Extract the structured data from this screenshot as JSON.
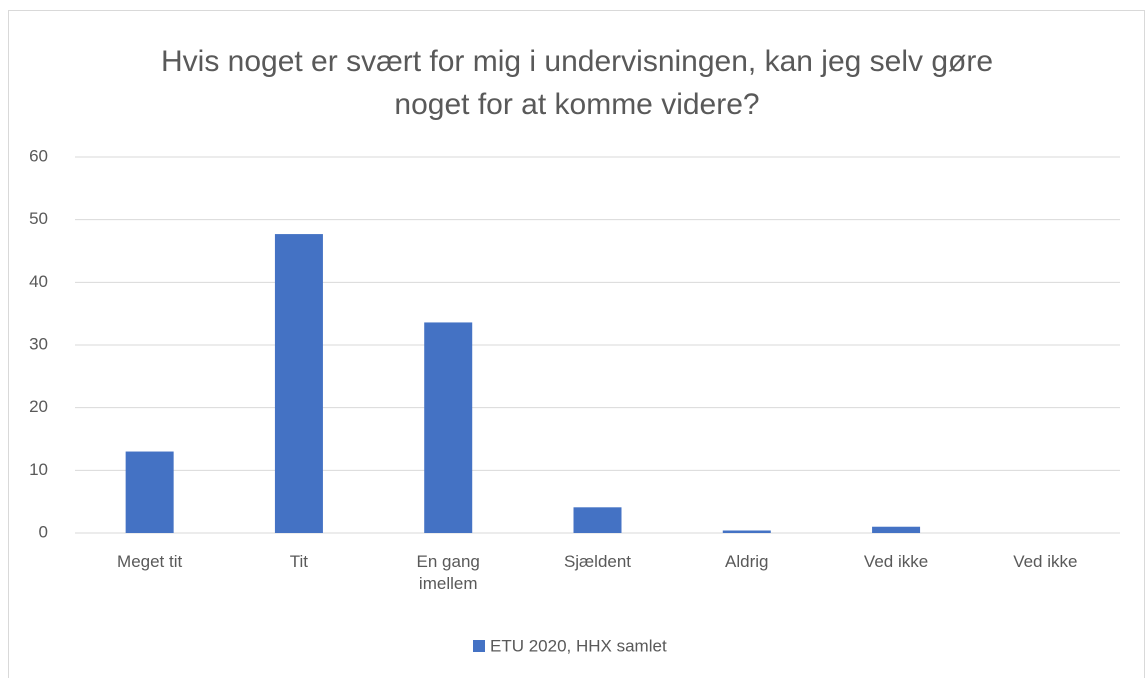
{
  "chart_data": {
    "type": "bar",
    "title": "Hvis noget er svært for mig i undervisningen, kan jeg selv gøre noget for at komme videre?",
    "categories": [
      "Meget tit",
      "Tit",
      "En gang imellem",
      "Sjældent",
      "Aldrig",
      "Ved ikke",
      "Ved ikke"
    ],
    "series": [
      {
        "name": "ETU 2020, HHX samlet",
        "color": "#4472c4",
        "values": [
          13,
          47.7,
          33.6,
          4.1,
          0.4,
          1.0,
          0
        ]
      }
    ],
    "ylim": [
      0,
      60
    ],
    "yticks": [
      0,
      10,
      20,
      30,
      40,
      50,
      60
    ],
    "grid": true,
    "legend": "bottom"
  }
}
